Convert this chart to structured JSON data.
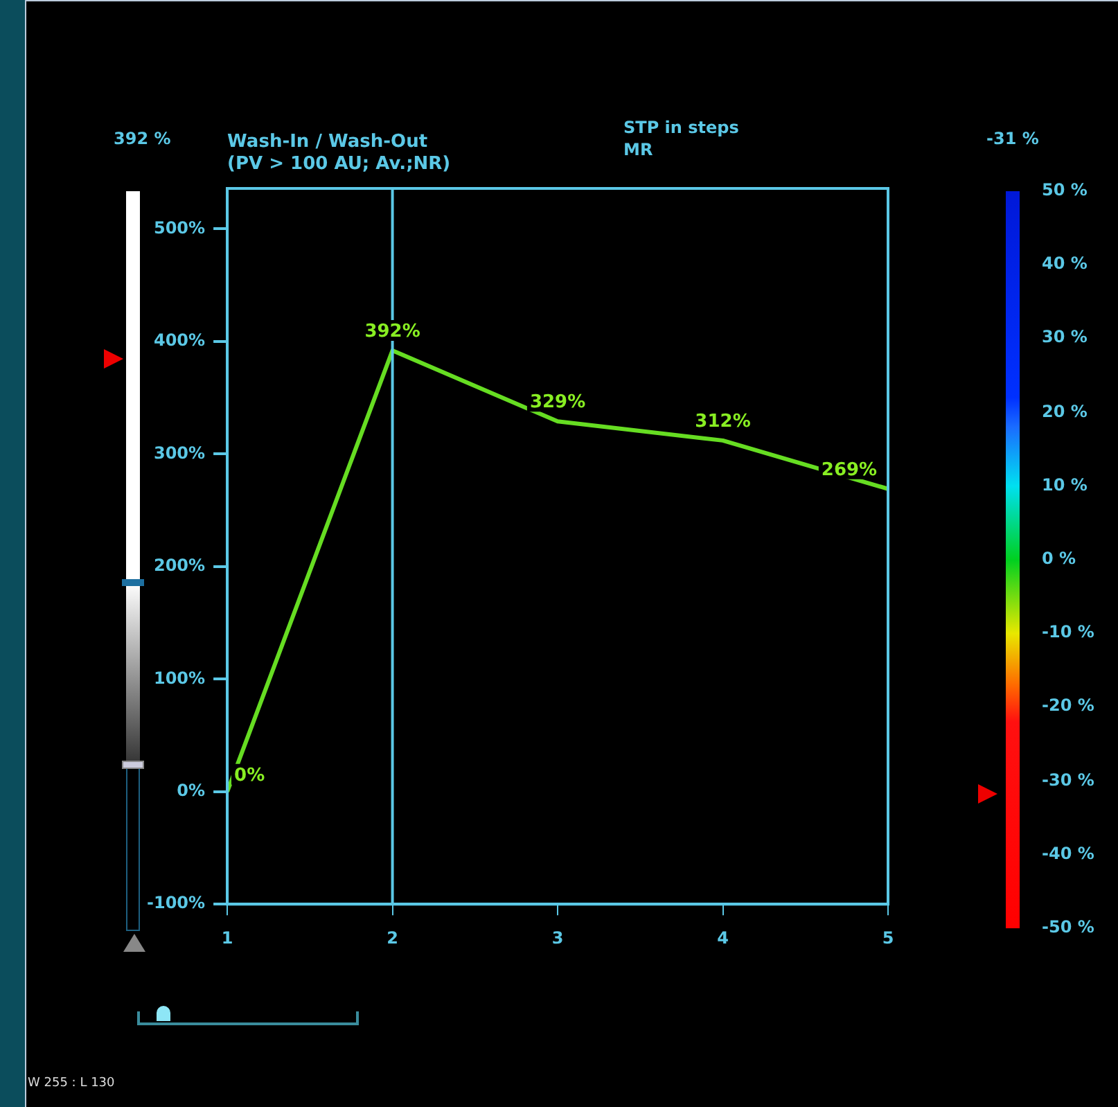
{
  "chart_data": {
    "type": "line",
    "title": "Wash-In / Wash-Out",
    "subtitle": "(PV > 100 AU; Av.;NR)",
    "annotations": [
      "STP in steps",
      "MR",
      "392 %",
      "-31 %",
      "W 255 : L 130"
    ],
    "x": [
      1,
      2,
      3,
      4,
      5
    ],
    "xlim": [
      1,
      5
    ],
    "xticks": [
      1,
      2,
      3,
      4,
      5
    ],
    "ylim": [
      -100,
      536
    ],
    "yticks": [
      {
        "value": -100,
        "label": "-100%"
      },
      {
        "value": 0,
        "label": "0%"
      },
      {
        "value": 100,
        "label": "100%"
      },
      {
        "value": 200,
        "label": "200%"
      },
      {
        "value": 300,
        "label": "300%"
      },
      {
        "value": 400,
        "label": "400%"
      },
      {
        "value": 500,
        "label": "500%"
      }
    ],
    "series": [
      {
        "color": "#66dd22",
        "values": [
          0,
          392,
          329,
          312,
          269
        ],
        "value_labels": [
          "0%",
          "392%",
          "329%",
          "312%",
          "269%"
        ]
      }
    ],
    "ref_lines": [
      {
        "axis": "x",
        "value": 2,
        "color": "#5bc8e6"
      }
    ],
    "clim": [
      -50,
      50
    ],
    "cticks": [
      {
        "value": 50,
        "label": "50 %"
      },
      {
        "value": 40,
        "label": "40 %"
      },
      {
        "value": 30,
        "label": "30 %"
      },
      {
        "value": 20,
        "label": "20 %"
      },
      {
        "value": 10,
        "label": "10 %"
      },
      {
        "value": 0,
        "label": "0 %"
      },
      {
        "value": -10,
        "label": "-10 %"
      },
      {
        "value": -20,
        "label": "-20 %"
      },
      {
        "value": -30,
        "label": "-30 %"
      },
      {
        "value": -40,
        "label": "-40 %"
      },
      {
        "value": -50,
        "label": "-50 %"
      }
    ],
    "grid": false
  }
}
